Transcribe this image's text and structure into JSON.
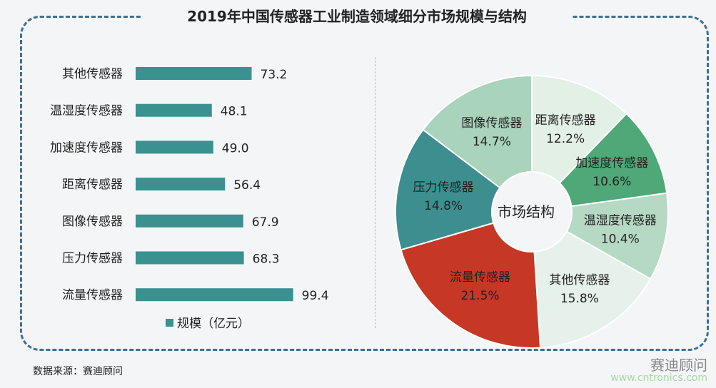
{
  "chart_data": [
    {
      "type": "bar",
      "orientation": "horizontal",
      "title": "2019年中国传感器工业制造领域细分市场规模与结构",
      "categories": [
        "其他传感器",
        "温湿度传感器",
        "加速度传感器",
        "距离传感器",
        "图像传感器",
        "压力传感器",
        "流量传感器"
      ],
      "series": [
        {
          "name": "规模（亿元）",
          "values": [
            73.2,
            48.1,
            49.0,
            56.4,
            67.9,
            68.3,
            99.4
          ],
          "color": "#3a9190"
        }
      ]
    },
    {
      "type": "pie",
      "donut": true,
      "center_label": "市场结构",
      "slices": [
        {
          "label": "距离传感器",
          "value": 12.2,
          "text": "12.2%",
          "color": "#e2f0e6"
        },
        {
          "label": "加速度传感器",
          "value": 10.6,
          "text": "10.6%",
          "color": "#4fa877"
        },
        {
          "label": "温湿度传感器",
          "value": 10.4,
          "text": "10.4%",
          "color": "#b6d9c3"
        },
        {
          "label": "其他传感器",
          "value": 15.8,
          "text": "15.8%",
          "color": "#e7f1eb"
        },
        {
          "label": "流量传感器",
          "value": 21.5,
          "text": "21.5%",
          "color": "#c63726"
        },
        {
          "label": "压力传感器",
          "value": 14.8,
          "text": "14.8%",
          "color": "#3c8f8e"
        },
        {
          "label": "图像传感器",
          "value": 14.7,
          "text": "14.7%",
          "color": "#a9d3bb"
        }
      ]
    }
  ],
  "source": "数据来源：赛迪顾问",
  "watermark": "赛迪顾问",
  "watermark_url": "www.cntronics.com"
}
